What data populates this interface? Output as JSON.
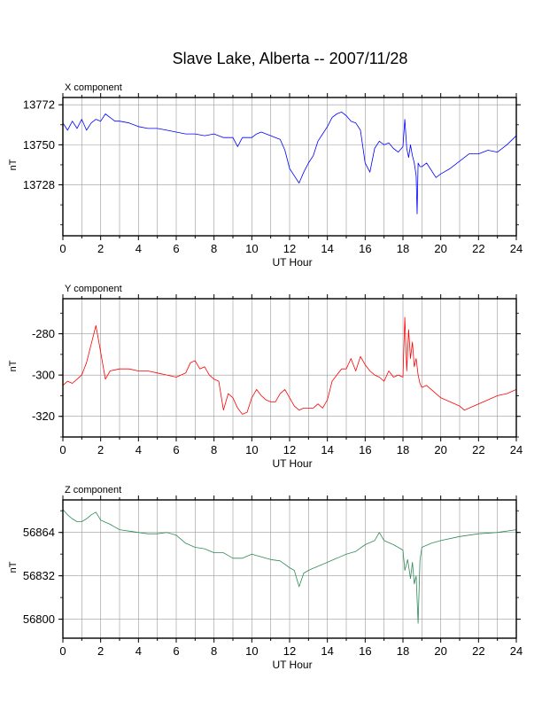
{
  "title": "Slave Lake, Alberta -- 2007/11/28",
  "chart_data": [
    {
      "type": "line",
      "panel_title": "X component",
      "xlabel": "UT Hour",
      "ylabel": "nT",
      "xlim": [
        0,
        24
      ],
      "ylim": [
        13700,
        13776
      ],
      "xticks": [
        0,
        2,
        4,
        6,
        8,
        10,
        12,
        14,
        16,
        18,
        20,
        22,
        24
      ],
      "yticks": [
        13772,
        13750,
        13728
      ],
      "grid": true,
      "color": "#0000ff",
      "series": [
        {
          "x": [
            0,
            0.25,
            0.5,
            0.75,
            1,
            1.25,
            1.5,
            1.75,
            2,
            2.25,
            2.5,
            2.75,
            3,
            3.5,
            4,
            4.5,
            5,
            5.5,
            6,
            6.5,
            7,
            7.5,
            8,
            8.5,
            9,
            9.25,
            9.5,
            10,
            10.25,
            10.5,
            11,
            11.25,
            11.5,
            11.75,
            12,
            12.25,
            12.5,
            12.75,
            13,
            13.25,
            13.5,
            13.75,
            14,
            14.25,
            14.5,
            14.75,
            15,
            15.25,
            15.5,
            15.75,
            16,
            16.25,
            16.5,
            16.75,
            17,
            17.25,
            17.5,
            17.75,
            18,
            18.1,
            18.2,
            18.3,
            18.4,
            18.5,
            18.6,
            18.7,
            18.75,
            18.8,
            18.9,
            19,
            19.25,
            19.5,
            19.75,
            20,
            20.5,
            21,
            21.5,
            22,
            22.5,
            23,
            23.5,
            24
          ],
          "y": [
            13762,
            13758,
            13763,
            13759,
            13764,
            13758,
            13762,
            13764,
            13763,
            13767,
            13765,
            13763,
            13763,
            13762,
            13760,
            13759,
            13759,
            13758,
            13757,
            13756,
            13756,
            13755,
            13756,
            13754,
            13754,
            13749,
            13754,
            13754,
            13756,
            13757,
            13755,
            13754,
            13753,
            13747,
            13737,
            13733,
            13729,
            13735,
            13740,
            13744,
            13752,
            13756,
            13760,
            13765,
            13767,
            13768,
            13766,
            13763,
            13762,
            13758,
            13740,
            13735,
            13748,
            13752,
            13750,
            13751,
            13748,
            13746,
            13749,
            13764,
            13748,
            13743,
            13750,
            13744,
            13740,
            13733,
            13712,
            13740,
            13738,
            13738,
            13740,
            13736,
            13732,
            13734,
            13737,
            13741,
            13745,
            13745,
            13747,
            13746,
            13750,
            13755
          ]
        }
      ]
    },
    {
      "type": "line",
      "panel_title": "Y component",
      "xlabel": "UT Hour",
      "ylabel": "nT",
      "xlim": [
        0,
        24
      ],
      "ylim": [
        -330,
        -263
      ],
      "xticks": [
        0,
        2,
        4,
        6,
        8,
        10,
        12,
        14,
        16,
        18,
        20,
        22,
        24
      ],
      "yticks": [
        -280,
        -300,
        -320
      ],
      "grid": true,
      "color": "#ff0000",
      "series": [
        {
          "x": [
            0,
            0.25,
            0.5,
            0.75,
            1,
            1.25,
            1.5,
            1.75,
            2,
            2.25,
            2.5,
            3,
            3.5,
            4,
            4.5,
            5,
            5.5,
            6,
            6.5,
            6.75,
            7,
            7.25,
            7.5,
            7.75,
            8,
            8.25,
            8.5,
            8.75,
            9,
            9.25,
            9.5,
            9.75,
            10,
            10.25,
            10.5,
            10.75,
            11,
            11.25,
            11.5,
            11.75,
            12,
            12.25,
            12.5,
            12.75,
            13,
            13.25,
            13.5,
            13.75,
            14,
            14.25,
            14.5,
            14.75,
            15,
            15.25,
            15.5,
            15.75,
            16,
            16.25,
            16.5,
            16.75,
            17,
            17.25,
            17.5,
            17.75,
            18,
            18.1,
            18.2,
            18.3,
            18.4,
            18.5,
            18.6,
            18.7,
            18.8,
            18.9,
            19,
            19.25,
            19.5,
            20,
            20.5,
            21,
            21.25,
            21.5,
            22,
            22.5,
            23,
            23.5,
            24
          ],
          "y": [
            -305,
            -303,
            -304,
            -302,
            -300,
            -294,
            -285,
            -276,
            -289,
            -302,
            -298,
            -297,
            -297,
            -298,
            -298,
            -299,
            -300,
            -301,
            -299,
            -294,
            -293,
            -297,
            -296,
            -300,
            -302,
            -303,
            -317,
            -309,
            -311,
            -316,
            -319,
            -318,
            -311,
            -307,
            -310,
            -312,
            -313,
            -313,
            -309,
            -307,
            -311,
            -315,
            -317,
            -316,
            -316,
            -316,
            -314,
            -316,
            -312,
            -303,
            -300,
            -297,
            -297,
            -292,
            -298,
            -291,
            -295,
            -298,
            -300,
            -301,
            -303,
            -298,
            -301,
            -300,
            -301,
            -272,
            -298,
            -278,
            -292,
            -284,
            -296,
            -292,
            -300,
            -304,
            -306,
            -305,
            -307,
            -311,
            -313,
            -315,
            -317,
            -316,
            -314,
            -312,
            -310,
            -309,
            -307
          ]
        }
      ]
    },
    {
      "type": "line",
      "panel_title": "Z component",
      "xlabel": "UT Hour",
      "ylabel": "nT",
      "xlim": [
        0,
        24
      ],
      "ylim": [
        56786,
        56888
      ],
      "xticks": [
        0,
        2,
        4,
        6,
        8,
        10,
        12,
        14,
        16,
        18,
        20,
        22,
        24
      ],
      "yticks": [
        56864,
        56832,
        56800
      ],
      "grid": true,
      "color": "#2e8b57",
      "series": [
        {
          "x": [
            0,
            0.25,
            0.5,
            0.75,
            1,
            1.25,
            1.5,
            1.75,
            2,
            2.5,
            3,
            3.5,
            4,
            4.5,
            5,
            5.5,
            6,
            6.5,
            7,
            7.5,
            8,
            8.5,
            9,
            9.5,
            10,
            10.5,
            11,
            11.5,
            12,
            12.25,
            12.5,
            12.75,
            13,
            13.5,
            14,
            14.5,
            15,
            15.5,
            16,
            16.5,
            16.75,
            17,
            17.5,
            18,
            18.1,
            18.25,
            18.4,
            18.5,
            18.6,
            18.7,
            18.8,
            18.9,
            19,
            19.5,
            20,
            21,
            22,
            23,
            24
          ],
          "y": [
            56881,
            56877,
            56874,
            56872,
            56872,
            56874,
            56877,
            56879,
            56873,
            56870,
            56866,
            56865,
            56864,
            56863,
            56863,
            56864,
            56862,
            56856,
            56853,
            56852,
            56849,
            56849,
            56845,
            56845,
            56848,
            56846,
            56844,
            56843,
            56838,
            56836,
            56824,
            56834,
            56836,
            56839,
            56842,
            56845,
            56848,
            56850,
            56855,
            56858,
            56864,
            56858,
            56855,
            56851,
            56836,
            56844,
            56830,
            56842,
            56826,
            56832,
            56797,
            56843,
            56853,
            56856,
            56858,
            56861,
            56863,
            56864,
            56866
          ]
        }
      ]
    }
  ]
}
